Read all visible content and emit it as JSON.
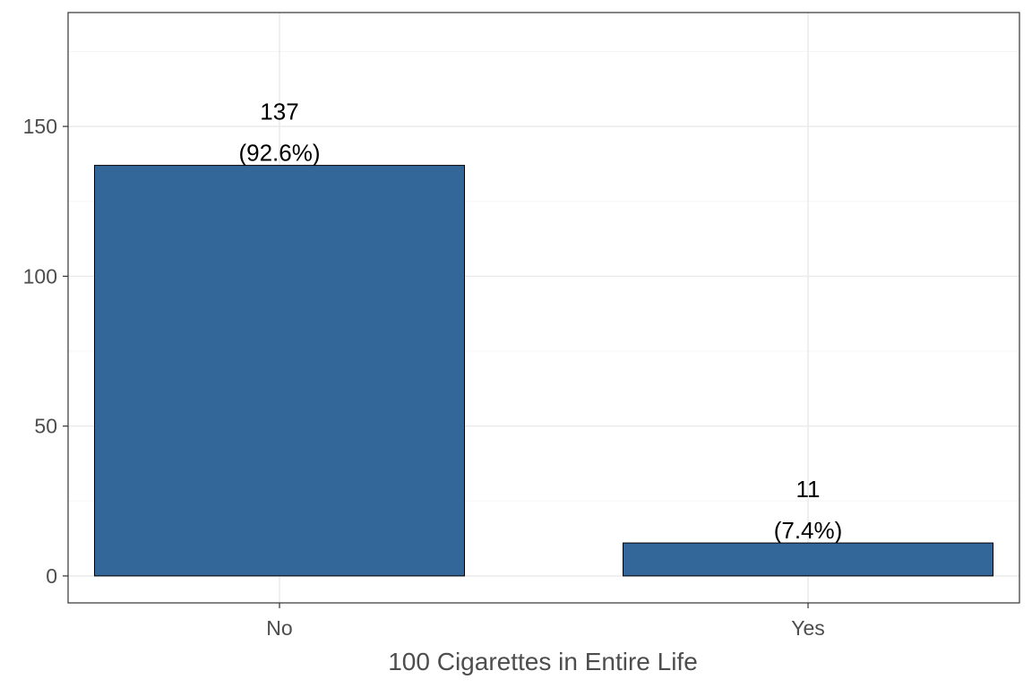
{
  "chart_data": {
    "type": "bar",
    "categories": [
      "No",
      "Yes"
    ],
    "values": [
      137,
      11
    ],
    "labels": [
      {
        "count": "137",
        "percent": "(92.6%)"
      },
      {
        "count": "11",
        "percent": "(7.4%)"
      }
    ],
    "xlabel": "100 Cigarettes in Entire Life",
    "ylabel": "",
    "ylim": [
      -9,
      188
    ],
    "yticks": [
      0,
      50,
      100,
      150
    ],
    "grid": true,
    "colors": {
      "bar_fill": "#336699",
      "bar_stroke": "#000000",
      "grid_major": "#ebebeb",
      "grid_minor": "#f5f5f5",
      "panel_border": "#333333"
    }
  }
}
